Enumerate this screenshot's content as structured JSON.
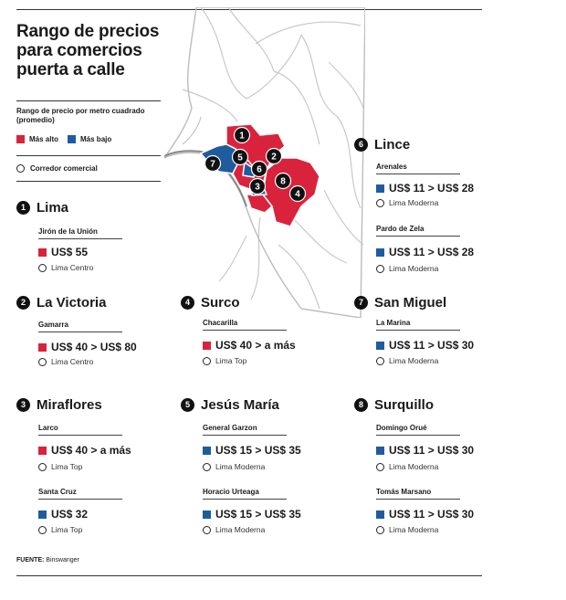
{
  "title": "Rango de precios para comercios puerta a calle",
  "legend": {
    "subtitle": "Rango de precio por metro cuadrado (promedio)",
    "high_label": "Más alto",
    "low_label": "Más bajo",
    "corridor_label": "Corredor comercial",
    "colors": {
      "high": "#d9233d",
      "low": "#1f5c9e"
    }
  },
  "map_markers": [
    "1",
    "2",
    "3",
    "4",
    "5",
    "6",
    "7",
    "8"
  ],
  "districts": [
    {
      "num": "1",
      "name": "Lima",
      "entries": [
        {
          "street": "Jirón de la Unión",
          "price": "US$ 55",
          "level": "high",
          "corridor": "Lima Centro"
        }
      ]
    },
    {
      "num": "2",
      "name": "La Victoria",
      "entries": [
        {
          "street": "Gamarra",
          "price": "US$ 40 > US$ 80",
          "level": "high",
          "corridor": "Lima Centro"
        }
      ]
    },
    {
      "num": "3",
      "name": "Miraflores",
      "entries": [
        {
          "street": "Larco",
          "price": "US$ 40 > a más",
          "level": "high",
          "corridor": "Lima Top"
        },
        {
          "street": "Santa Cruz",
          "price": "US$ 32",
          "level": "low",
          "corridor": "Lima Top"
        }
      ]
    },
    {
      "num": "4",
      "name": "Surco",
      "entries": [
        {
          "street": "Chacarilla",
          "price": "US$ 40 > a más",
          "level": "high",
          "corridor": "Lima Top"
        }
      ]
    },
    {
      "num": "5",
      "name": "Jesús María",
      "entries": [
        {
          "street": "General Garzon",
          "price": "US$ 15 > US$ 35",
          "level": "low",
          "corridor": "Lima Moderna"
        },
        {
          "street": "Horacio Urteaga",
          "price": "US$ 15 > US$ 35",
          "level": "low",
          "corridor": "Lima Moderna"
        }
      ]
    },
    {
      "num": "6",
      "name": "Lince",
      "entries": [
        {
          "street": "Arenales",
          "price": "US$ 11 > US$ 28",
          "level": "low",
          "corridor": "Lima Moderna"
        },
        {
          "street": "Pardo de Zela",
          "price": "US$ 11 > US$ 28",
          "level": "low",
          "corridor": "Lima Moderna"
        }
      ]
    },
    {
      "num": "7",
      "name": "San Miguel",
      "entries": [
        {
          "street": "La Marina",
          "price": "US$ 11 > US$ 30",
          "level": "low",
          "corridor": "Lima Moderna"
        }
      ]
    },
    {
      "num": "8",
      "name": "Surquillo",
      "entries": [
        {
          "street": "Domingo Orué",
          "price": "US$ 11 > US$ 30",
          "level": "low",
          "corridor": "Lima Moderna"
        },
        {
          "street": "Tomás Marsano",
          "price": "US$ 11 > US$ 30",
          "level": "low",
          "corridor": "Lima Moderna"
        }
      ]
    }
  ],
  "source": {
    "label": "FUENTE:",
    "text": "Binswanger"
  }
}
